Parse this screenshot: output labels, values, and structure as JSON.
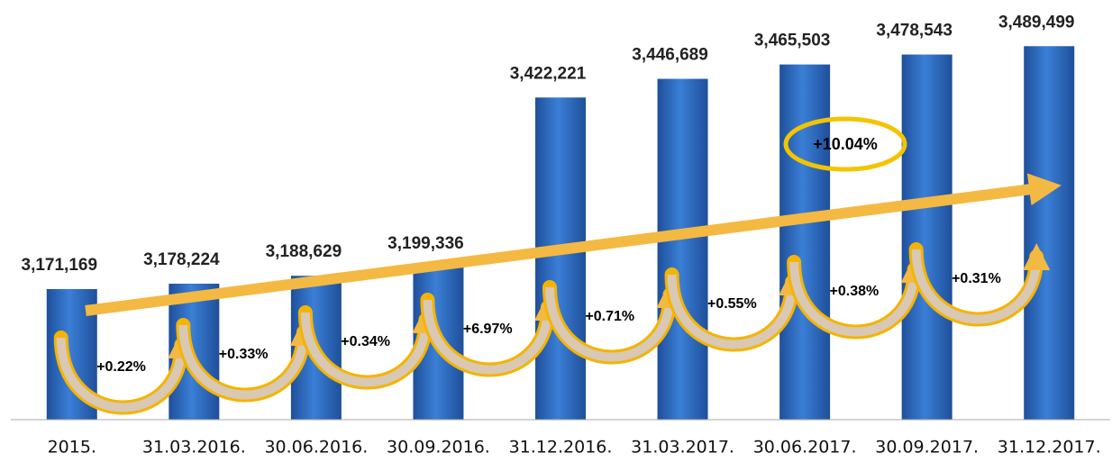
{
  "chart_data": {
    "type": "bar",
    "categories": [
      "2015.",
      "31.03.2016.",
      "30.06.2016.",
      "30.09.2016.",
      "31.12.2016.",
      "31.03.2017.",
      "30.06.2017.",
      "30.09.2017.",
      "31.12.2017."
    ],
    "values": [
      3171169,
      3178224,
      3188629,
      3199336,
      3422221,
      3446689,
      3465503,
      3478543,
      3489499
    ],
    "value_labels": [
      "3,171,169",
      "3,178,224",
      "3,188,629",
      "3,199,336",
      "3,422,221",
      "3,446,689",
      "3,465,503",
      "3,478,543",
      "3,489,499"
    ],
    "color": "#2f6fc4",
    "ylim": [
      3000000,
      3550000
    ],
    "annotations": [
      "+0.22%",
      "+0.33%",
      "+0.34%",
      "+6.97%",
      "+0.71%",
      "+0.55%",
      "+0.38%",
      "+0.31%"
    ],
    "total_change": "+10.04%"
  }
}
